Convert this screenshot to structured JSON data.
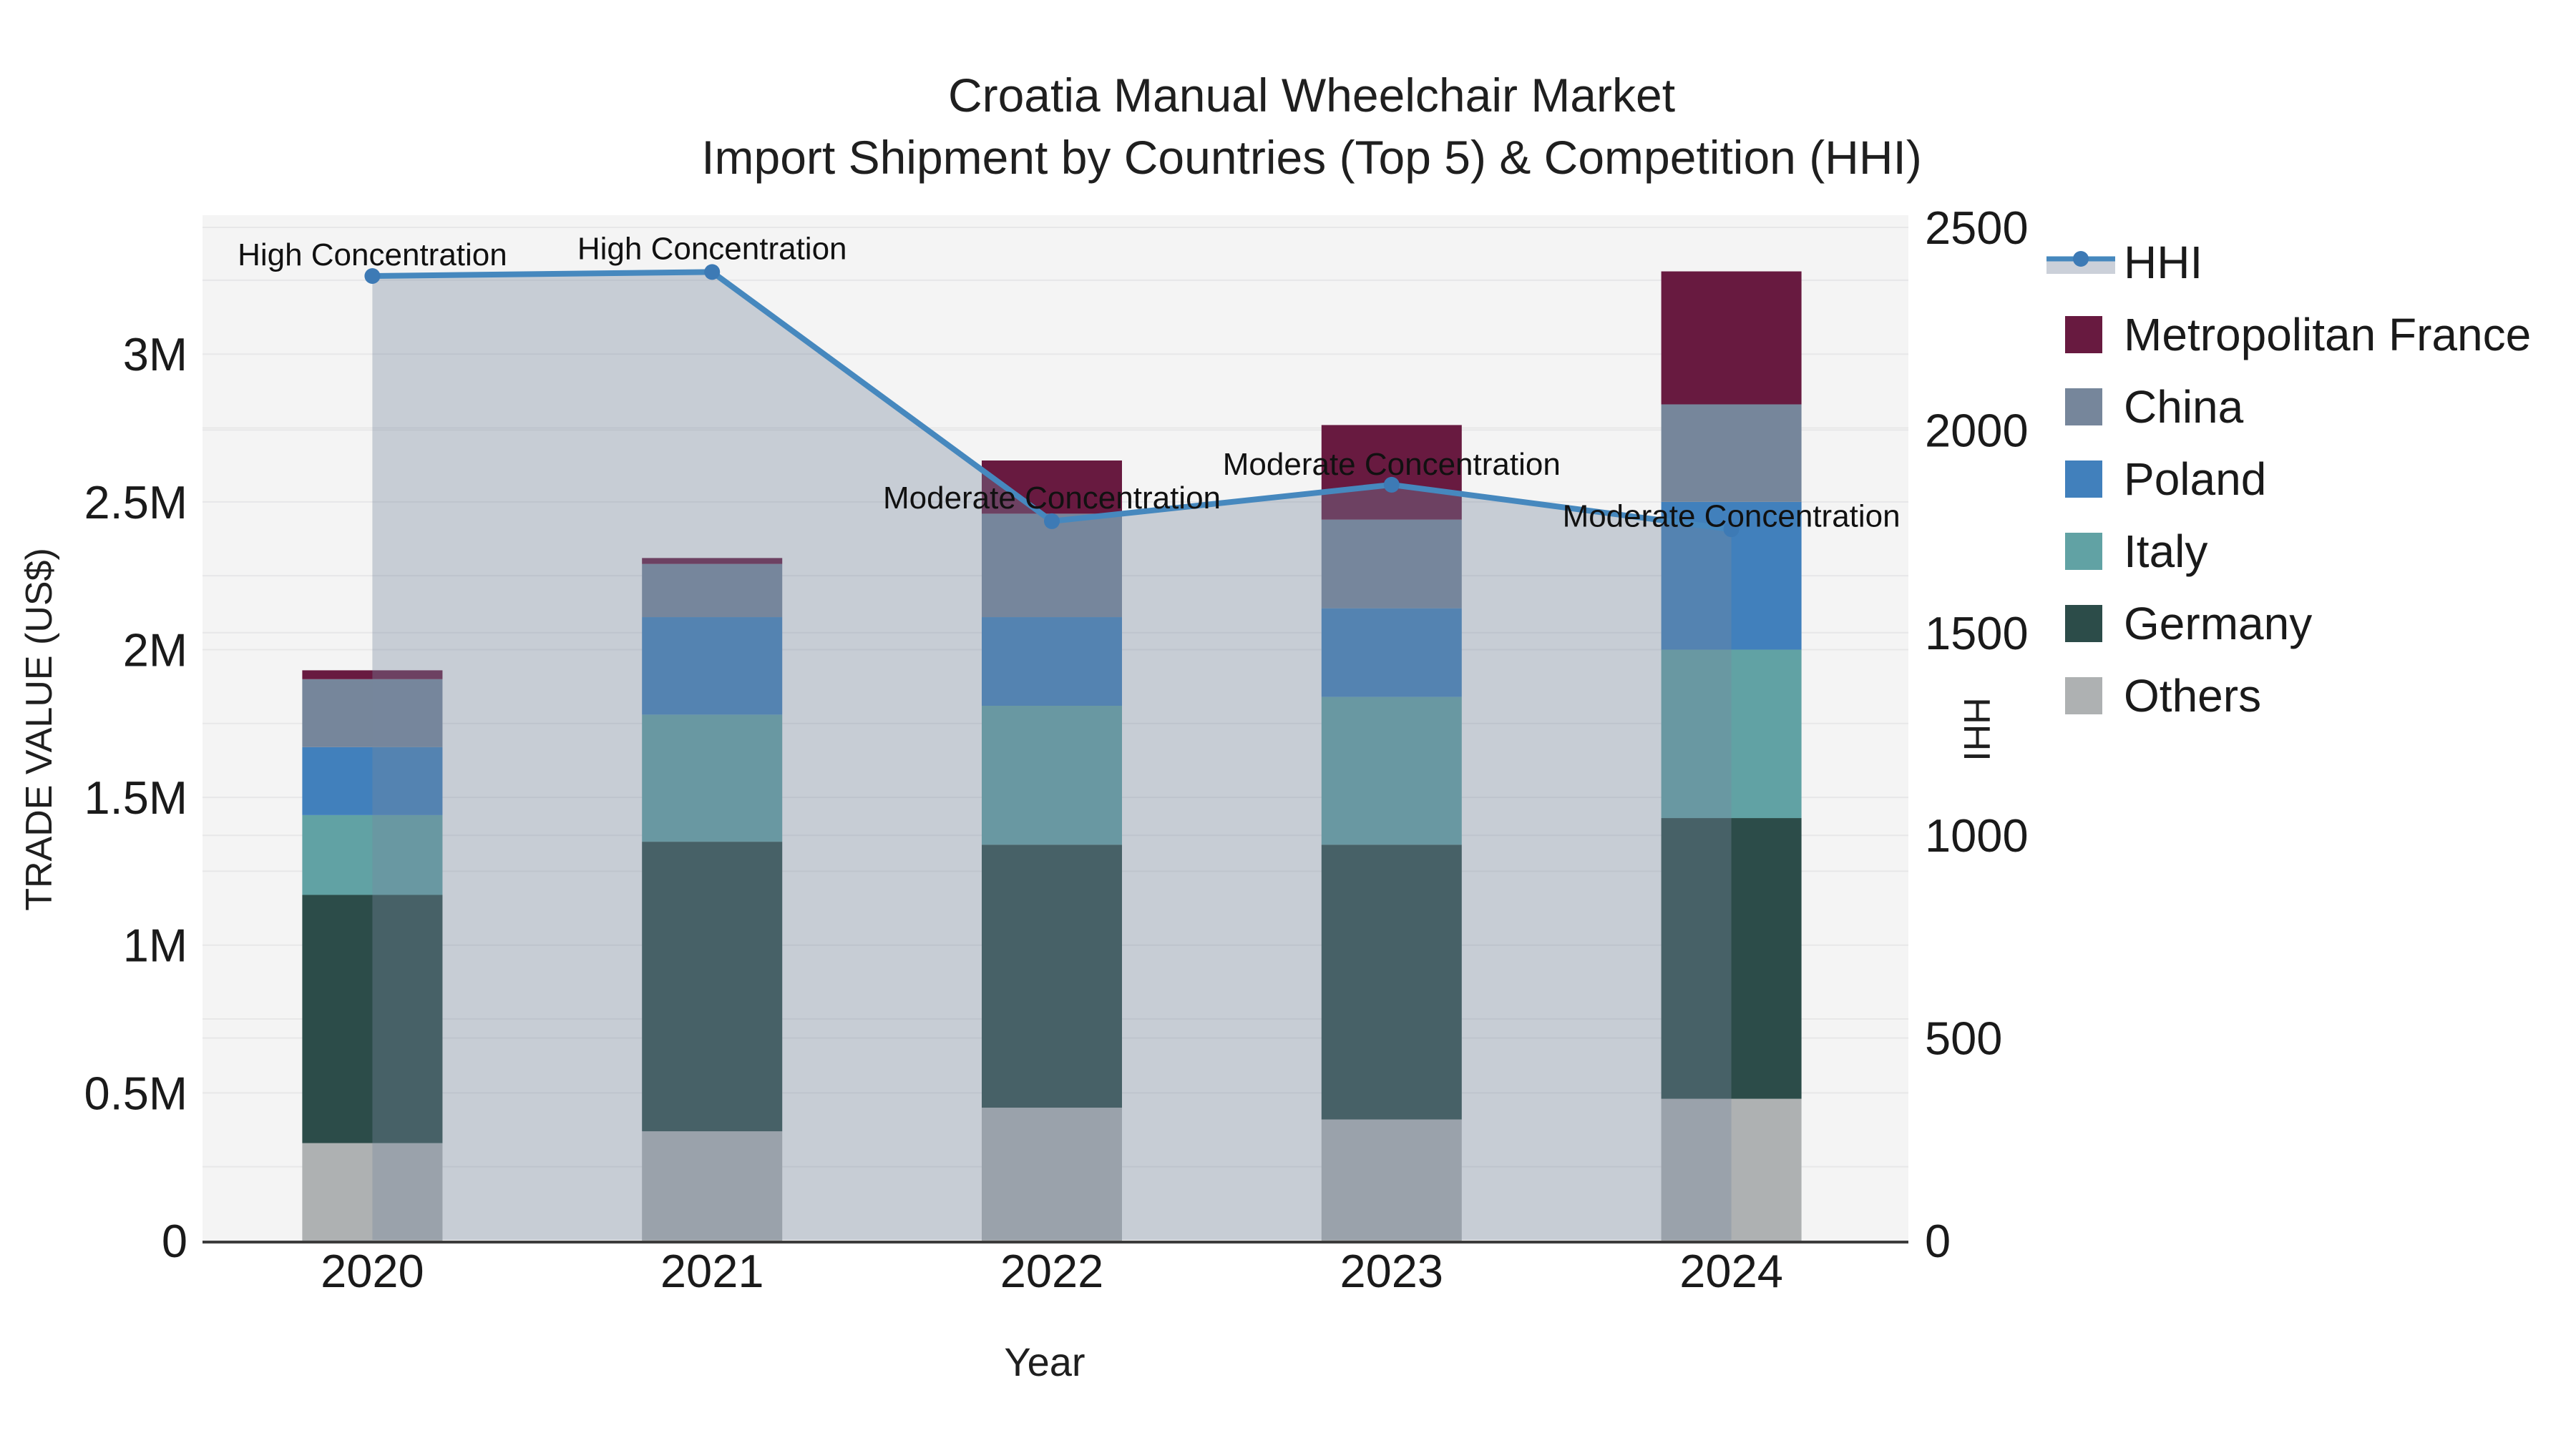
{
  "title": {
    "line1": "Croatia Manual Wheelchair Market",
    "line2": "Import Shipment by Countries (Top 5) & Competition (HHI)"
  },
  "axes": {
    "x_title": "Year",
    "y_left_title": "TRADE VALUE (US$)",
    "y_right_title": "HHI",
    "y_left_tick_labels": [
      "0",
      "0.5M",
      "1M",
      "1.5M",
      "2M",
      "2.5M",
      "3M"
    ],
    "y_left_tick_step_m": 0.5,
    "y_left_max_m": 3.47,
    "y_right_tick_labels": [
      "0",
      "500",
      "1000",
      "1500",
      "2000",
      "2500"
    ],
    "y_right_tick_step": 500,
    "y_right_max": 2530
  },
  "chart_data": {
    "type": "stacked-bar+line",
    "title": "Croatia Manual Wheelchair Market Import Shipment by Countries (Top 5) & Competition (HHI)",
    "xlabel": "Year",
    "ylabel_left": "TRADE VALUE (US$)",
    "ylabel_right": "HHI",
    "ylim_left_usd_m": [
      0,
      3.47
    ],
    "ylim_right_hhi": [
      0,
      2530
    ],
    "grid": true,
    "legend_position": "right",
    "categories": [
      "2020",
      "2021",
      "2022",
      "2023",
      "2024"
    ],
    "bar_unit": "US$ millions",
    "series": [
      {
        "name": "Others",
        "color": "#AEB1B2",
        "values_m": [
          0.33,
          0.37,
          0.45,
          0.41,
          0.48
        ]
      },
      {
        "name": "Germany",
        "color": "#2C4C49",
        "values_m": [
          0.84,
          0.98,
          0.89,
          0.93,
          0.95
        ]
      },
      {
        "name": "Italy",
        "color": "#61A2A4",
        "values_m": [
          0.27,
          0.43,
          0.47,
          0.5,
          0.57
        ]
      },
      {
        "name": "Poland",
        "color": "#4180BC",
        "values_m": [
          0.23,
          0.33,
          0.3,
          0.3,
          0.5
        ]
      },
      {
        "name": "China",
        "color": "#76869B",
        "values_m": [
          0.23,
          0.18,
          0.35,
          0.3,
          0.33
        ]
      },
      {
        "name": "Metropolitan France",
        "color": "#681A40",
        "values_m": [
          0.03,
          0.02,
          0.18,
          0.32,
          0.45
        ]
      }
    ],
    "bar_totals_m": [
      1.93,
      2.31,
      2.64,
      2.76,
      3.28
    ],
    "line": {
      "name": "HHI",
      "color": "#4688BE",
      "marker_color": "#3D7AB5",
      "fill_color": "rgba(119,136,158,0.36)",
      "values": [
        2380,
        2390,
        1775,
        1865,
        1755
      ]
    },
    "annotations": [
      {
        "x": "2020",
        "text": "High Concentration",
        "dy": -31
      },
      {
        "x": "2021",
        "text": "High Concentration",
        "dy": -34
      },
      {
        "x": "2022",
        "text": "Moderate Concentration",
        "dy": -34
      },
      {
        "x": "2023",
        "text": "Moderate Concentration",
        "dy": -30
      },
      {
        "x": "2024",
        "text": "Moderate Concentration",
        "dy": -20
      }
    ],
    "legend_order": [
      "HHI",
      "Metropolitan France",
      "China",
      "Poland",
      "Italy",
      "Germany",
      "Others"
    ]
  },
  "style": {
    "plot_bg": "#F4F4F4",
    "grid_color": "#E7E7E8",
    "axis_line_color": "#3C3C3C",
    "annotation_color": "#111111",
    "legend_band_color": "#CBD0D9"
  }
}
